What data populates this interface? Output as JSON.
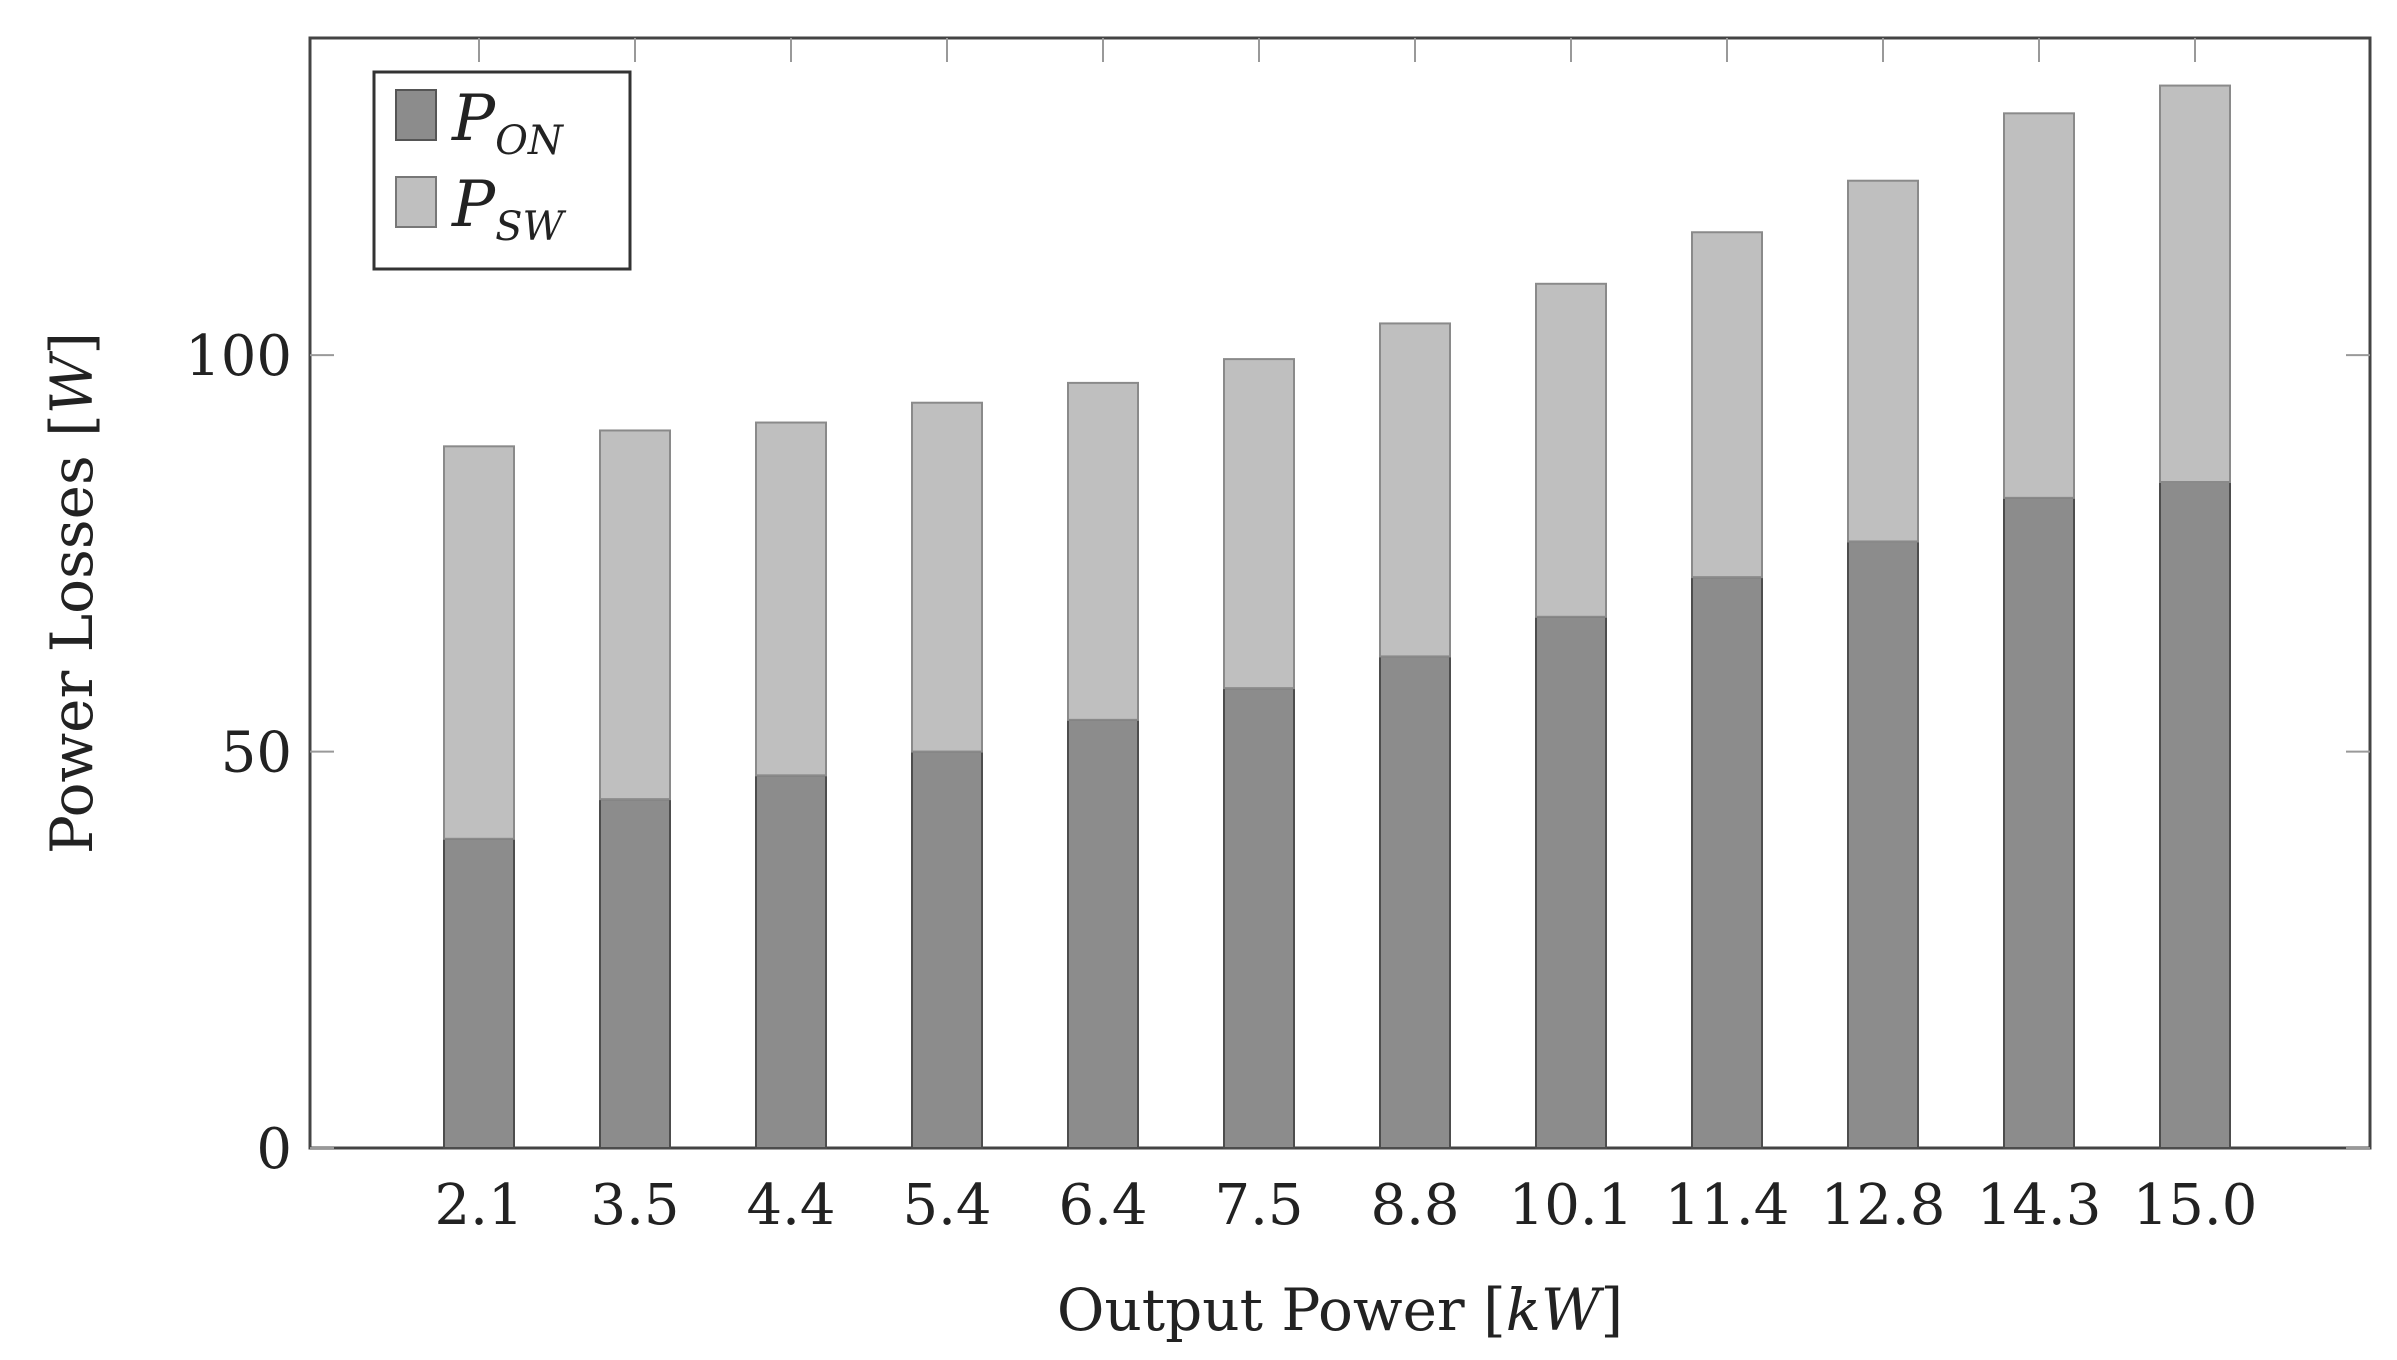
{
  "chart_data": {
    "type": "bar",
    "stacked": true,
    "categories": [
      "2.1",
      "3.5",
      "4.4",
      "5.4",
      "6.4",
      "7.5",
      "8.8",
      "10.1",
      "11.4",
      "12.8",
      "14.3",
      "15.0"
    ],
    "series": [
      {
        "name": "P_ON",
        "name_main": "P",
        "name_sub": "ON",
        "color": "#8c8c8c",
        "values": [
          39,
          44,
          47,
          50,
          54,
          58,
          62,
          67,
          72,
          76.5,
          82,
          84
        ]
      },
      {
        "name": "P_SW",
        "name_main": "P",
        "name_sub": "SW",
        "color": "#bfbfbf",
        "values": [
          49.5,
          46.5,
          44.5,
          44,
          42.5,
          41.5,
          42,
          42,
          43.5,
          45.5,
          48.5,
          50
        ]
      }
    ],
    "xlabel": "Output Power [kW]",
    "xlabel_plain": "Output Power ",
    "xlabel_unit": "kW",
    "ylabel": "Power Losses [W]",
    "ylabel_plain": "Power Losses ",
    "ylabel_unit": "W",
    "ylim": [
      0,
      140
    ],
    "yticks": [
      0,
      50,
      100
    ],
    "legend_position": "top-left",
    "grid": false
  }
}
